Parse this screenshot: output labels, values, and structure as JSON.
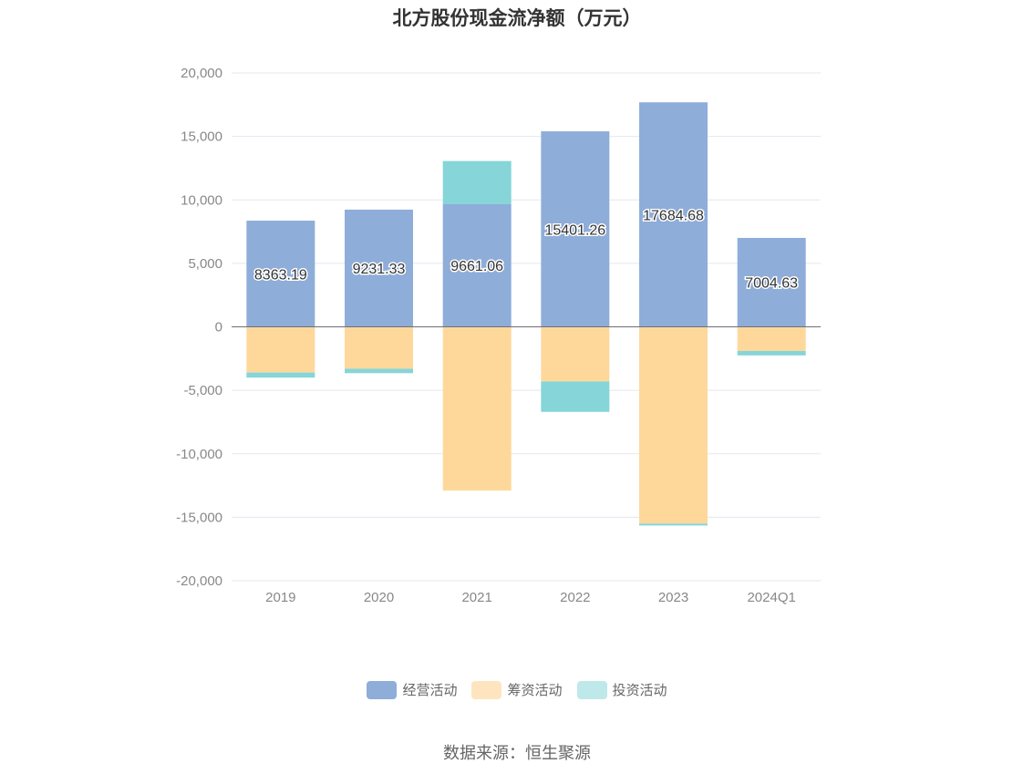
{
  "title": "北方股份现金流净额（万元）",
  "source": "数据来源：恒生聚源",
  "chart_data": {
    "type": "bar",
    "stacked": true,
    "categories": [
      "2019",
      "2020",
      "2021",
      "2022",
      "2023",
      "2024Q1"
    ],
    "ylim": [
      -20000,
      20000
    ],
    "yticks": [
      20000,
      15000,
      10000,
      5000,
      0,
      -5000,
      -10000,
      -15000,
      -20000
    ],
    "ytick_labels": [
      "20,000",
      "15,000",
      "10,000",
      "5,000",
      "0",
      "-5,000",
      "-10,000",
      "-15,000",
      "-20,000"
    ],
    "grid": true,
    "legend_position": "bottom",
    "series": [
      {
        "name": "经营活动",
        "color": "#8eadd9",
        "values": [
          8363.19,
          9231.33,
          9661.06,
          15401.26,
          17684.68,
          7004.63
        ],
        "labels": [
          "8363.19",
          "9231.33",
          "9661.06",
          "15401.26",
          "17684.68",
          "7004.63"
        ]
      },
      {
        "name": "筹资活动",
        "color": "#fed89b",
        "values": [
          -3600,
          -3300,
          -12900,
          -4300,
          -15500,
          -1900
        ]
      },
      {
        "name": "投资活动",
        "color": "#86d5d8",
        "values": [
          -400,
          -350,
          3400,
          -2400,
          -150,
          -350
        ]
      }
    ]
  },
  "legend_colors": [
    "#8eadd9",
    "#fee5c0",
    "#bfe8ea"
  ]
}
